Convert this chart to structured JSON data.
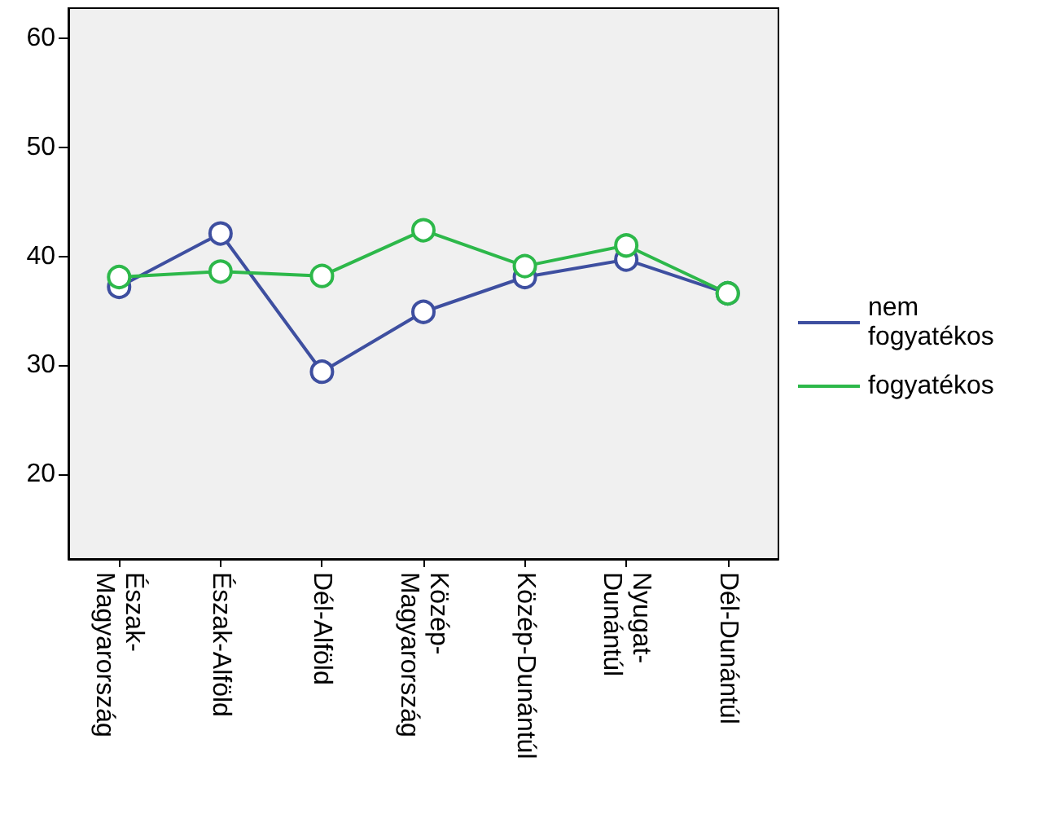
{
  "chart_data": {
    "type": "line",
    "categories": [
      "Észak-\nMagyarország",
      "Észak-Alföld",
      "Dél-Alföld",
      "Közép-\nMagyarország",
      "Közép-Dunántúl",
      "Nyugat-\nDunántúl",
      "Dél-Dunántúl"
    ],
    "series": [
      {
        "name": "nem\nfogyatékos",
        "color": "#3e4fa0",
        "values": [
          37.2,
          42.1,
          29.4,
          34.9,
          38.1,
          39.7,
          36.6
        ]
      },
      {
        "name": "fogyatékos",
        "color": "#2db84a",
        "values": [
          38.1,
          38.6,
          38.2,
          42.4,
          39.1,
          41.0,
          36.6
        ]
      }
    ],
    "ylim": [
      12.2,
      62.8
    ],
    "yticks": [
      20,
      30,
      40,
      50,
      60
    ],
    "grid": false,
    "legend": "right",
    "marker": "circle",
    "line_style": "solid"
  }
}
